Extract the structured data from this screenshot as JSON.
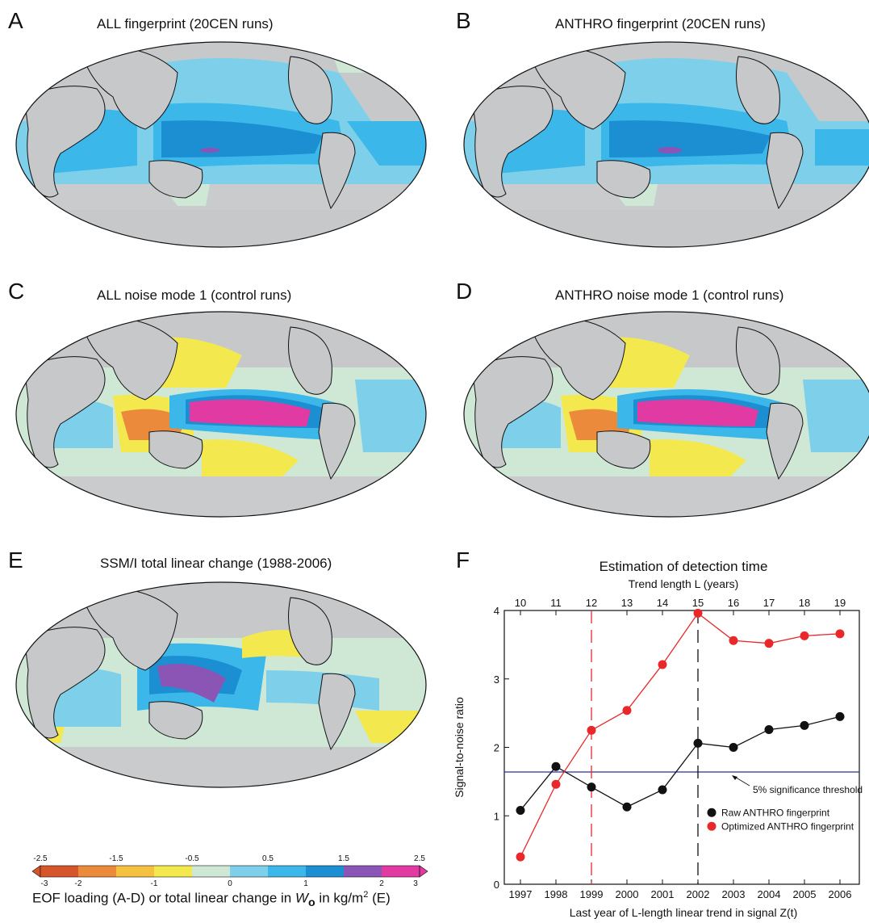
{
  "panels": [
    {
      "letter": "A",
      "title": "ALL fingerprint (20CEN runs)"
    },
    {
      "letter": "B",
      "title": "ANTHRO fingerprint (20CEN runs)"
    },
    {
      "letter": "C",
      "title": "ALL noise mode 1 (control runs)"
    },
    {
      "letter": "D",
      "title": "ANTHRO noise mode 1 (control runs)"
    },
    {
      "letter": "E",
      "title": "SSM/I total linear change (1988-2006)"
    },
    {
      "letter": "F",
      "title": "Estimation of detection time"
    }
  ],
  "colorbar": {
    "top_ticks": [
      "-2.5",
      "-1.5",
      "-0.5",
      "0.5",
      "1.5",
      "2.5"
    ],
    "bottom_ticks": [
      "-3",
      "-2",
      "-1",
      "0",
      "1",
      "2",
      "3"
    ],
    "colors": [
      "#d6562b",
      "#ec8a3c",
      "#f6c040",
      "#f4e84f",
      "#cfe8d6",
      "#7ed0ea",
      "#3bb7ea",
      "#1c8fd2",
      "#8a55b5",
      "#e23aa3"
    ],
    "caption_pre": "EOF loading (A-D) or total linear change in ",
    "caption_var": "W",
    "caption_sub": "o",
    "caption_post": " in kg/m",
    "caption_sup": "2",
    "caption_end": " (E)"
  },
  "map_colors": {
    "land": "#c6c8ca",
    "ocean_ice": "#c9cbcd",
    "teal": "#cfe8d6",
    "light_blue": "#7ed0ea",
    "mid_blue": "#3bb7ea",
    "deep_blue": "#1c8fd2",
    "purple": "#8a55b5",
    "magenta": "#e23aa3",
    "yellow": "#f4e84f",
    "orange": "#ec8a3c"
  },
  "chart_data": {
    "type": "line",
    "title": "Estimation of detection time",
    "top_axis_label": "Trend length  L  (years)",
    "top_ticks": [
      "10",
      "11",
      "12",
      "13",
      "14",
      "15",
      "16",
      "17",
      "18",
      "19"
    ],
    "xlabel": "Last year of L-length linear trend in signal Z(t)",
    "ylabel": "Signal-to-noise ratio",
    "categories": [
      "1997",
      "1998",
      "1999",
      "2000",
      "2001",
      "2002",
      "2003",
      "2004",
      "2005",
      "2006"
    ],
    "ylim": [
      0,
      4
    ],
    "y_ticks": [
      "0",
      "1",
      "2",
      "3",
      "4"
    ],
    "series": [
      {
        "name": "Raw ANTHRO fingerprint",
        "color": "#111111",
        "values": [
          1.08,
          1.72,
          1.42,
          1.13,
          1.38,
          2.06,
          2.0,
          2.26,
          2.32,
          2.45
        ]
      },
      {
        "name": "Optimized ANTHRO fingerprint",
        "color": "#e8282b",
        "values": [
          0.4,
          1.46,
          2.25,
          2.54,
          3.21,
          3.96,
          3.56,
          3.52,
          3.63,
          3.66
        ]
      }
    ],
    "threshold": {
      "value": 1.64,
      "label": "5% significance threshold",
      "color": "#2b2fa0"
    },
    "vlines": [
      {
        "x": "1999",
        "color": "#e8282b"
      },
      {
        "x": "2002",
        "color": "#111111"
      }
    ],
    "legend_position": "lower-right"
  }
}
